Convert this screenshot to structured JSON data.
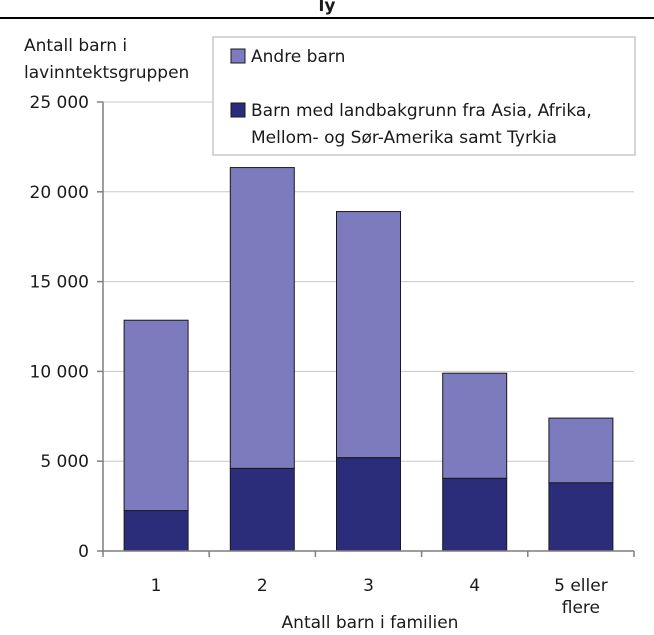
{
  "page": {
    "title_fragment": "ly"
  },
  "chart_data": {
    "type": "bar",
    "stacked": true,
    "categories": [
      "1",
      "2",
      "3",
      "4",
      "5 eller flere"
    ],
    "category_lines": [
      [
        "1"
      ],
      [
        "2"
      ],
      [
        "3"
      ],
      [
        "4"
      ],
      [
        "5 eller",
        "flere"
      ]
    ],
    "series": [
      {
        "name": "Barn med landbakgrunn fra Asia, Afrika, Mellom- og Sør-Amerika samt Tyrkia",
        "legend_lines": [
          "Barn med landbakgrunn fra Asia, Afrika,",
          "Mellom- og Sør-Amerika samt Tyrkia"
        ],
        "color": "#2b2d7a",
        "values": [
          2250,
          4600,
          5200,
          4050,
          3800
        ]
      },
      {
        "name": "Andre barn",
        "legend_lines": [
          "Andre barn"
        ],
        "color": "#7b7bbd",
        "values": [
          10600,
          16750,
          13700,
          5850,
          3600
        ]
      }
    ],
    "ylabel_lines": [
      "Antall barn i",
      "lavinntektsgruppen"
    ],
    "xlabel": "Antall barn i familien",
    "ylim": [
      0,
      25000
    ],
    "yticks": [
      0,
      5000,
      10000,
      15000,
      20000,
      25000
    ],
    "ytick_labels": [
      "0",
      "5 000",
      "10 000",
      "15 000",
      "20 000",
      "25 000"
    ],
    "grid": "horizontal",
    "legend_position": "top-right",
    "colors": {
      "axis": "#7f7f7f",
      "grid": "#c8c8c8",
      "bar_outline": "#1a1a1a"
    }
  }
}
